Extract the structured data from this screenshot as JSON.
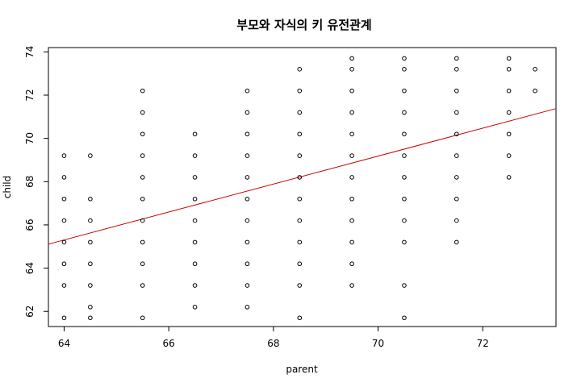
{
  "chart_data": {
    "type": "scatter",
    "title": "부모와 자식의 키 유전관계",
    "xlabel": "parent",
    "ylabel": "child",
    "xlim": [
      63.7,
      73.4
    ],
    "ylim": [
      61.3,
      74.2
    ],
    "xticks": [
      64,
      66,
      68,
      70,
      72
    ],
    "yticks": [
      62,
      64,
      66,
      68,
      70,
      72,
      74
    ],
    "grid": false,
    "point_style": "open circle",
    "point_color": "#000000",
    "columns": [
      {
        "x": 64.0,
        "y": [
          61.7,
          63.2,
          64.2,
          65.2,
          66.2,
          67.2,
          68.2,
          69.2
        ]
      },
      {
        "x": 64.5,
        "y": [
          61.7,
          62.2,
          63.2,
          64.2,
          65.2,
          66.2,
          67.2,
          69.2
        ]
      },
      {
        "x": 65.5,
        "y": [
          61.7,
          63.2,
          64.2,
          65.2,
          66.2,
          67.2,
          68.2,
          69.2,
          70.2,
          71.2,
          72.2
        ]
      },
      {
        "x": 66.5,
        "y": [
          62.2,
          63.2,
          64.2,
          65.2,
          66.2,
          67.2,
          68.2,
          69.2,
          70.2
        ]
      },
      {
        "x": 67.5,
        "y": [
          62.2,
          63.2,
          64.2,
          65.2,
          66.2,
          67.2,
          68.2,
          69.2,
          70.2,
          71.2,
          72.2
        ]
      },
      {
        "x": 68.5,
        "y": [
          61.7,
          63.2,
          64.2,
          65.2,
          66.2,
          67.2,
          68.2,
          69.2,
          70.2,
          71.2,
          72.2,
          73.2
        ]
      },
      {
        "x": 69.5,
        "y": [
          63.2,
          64.2,
          65.2,
          66.2,
          67.2,
          68.2,
          69.2,
          70.2,
          71.2,
          72.2,
          73.2,
          73.7
        ]
      },
      {
        "x": 70.5,
        "y": [
          61.7,
          63.2,
          65.2,
          66.2,
          67.2,
          68.2,
          69.2,
          70.2,
          71.2,
          72.2,
          73.2,
          73.7
        ]
      },
      {
        "x": 71.5,
        "y": [
          65.2,
          66.2,
          67.2,
          68.2,
          69.2,
          70.2,
          71.2,
          72.2,
          73.2,
          73.7
        ]
      },
      {
        "x": 72.5,
        "y": [
          68.2,
          69.2,
          70.2,
          71.2,
          72.2,
          73.2,
          73.7
        ]
      },
      {
        "x": 73.0,
        "y": [
          72.2,
          73.2
        ]
      }
    ],
    "regression_line": {
      "intercept": 23.94,
      "slope": 0.6463,
      "color": "#cc0000"
    }
  }
}
